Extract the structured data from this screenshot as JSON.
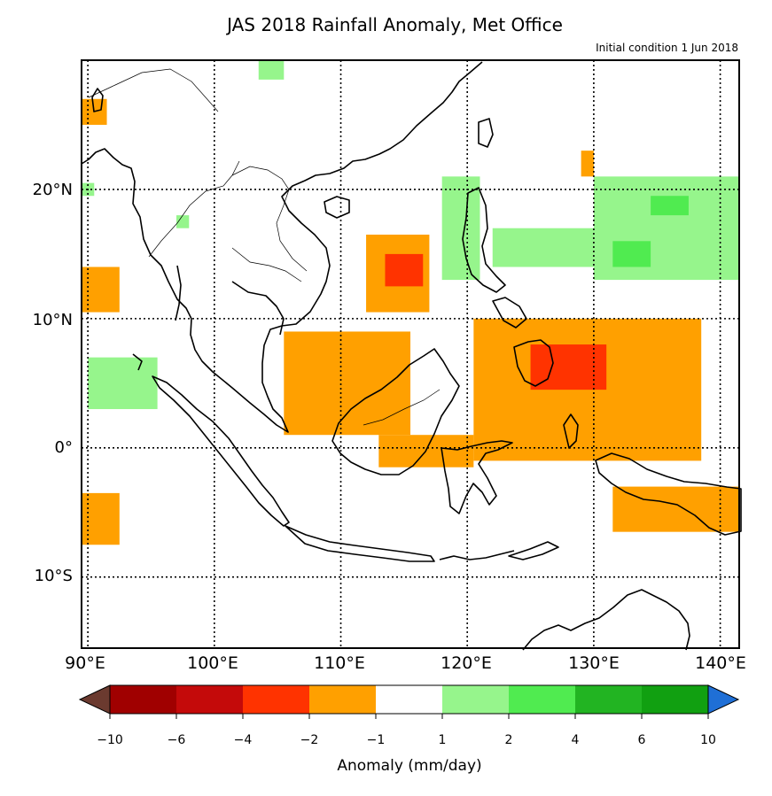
{
  "title": "JAS 2018 Rainfall Anomaly, Met Office",
  "subtitle": "Initial condition 1 Jun 2018",
  "map": {
    "lon_range": [
      89.5,
      141.5
    ],
    "lat_range": [
      -15.5,
      30
    ],
    "lat_labels": [
      "20°N",
      "10°N",
      "0°",
      "10°S"
    ],
    "lon_labels": [
      "90°E",
      "100°E",
      "110°E",
      "120°E",
      "130°E",
      "140°E"
    ],
    "gridlines": "dotted, every 10 degrees",
    "region": "Southeast Asia / Maritime Continent"
  },
  "chart_data": {
    "type": "heatmap",
    "title": "JAS 2018 Rainfall Anomaly, Met Office",
    "subtitle": "Initial condition 1 Jun 2018",
    "units": "mm/day",
    "colorbar": {
      "label": "Anomaly (mm/day)",
      "ticks": [
        "−10",
        "−6",
        "−4",
        "−2",
        "−1",
        "1",
        "2",
        "4",
        "6",
        "10"
      ],
      "bins": [
        {
          "range": "< -10",
          "color": "#6b3a2f"
        },
        {
          "range": "-10 to -6",
          "color": "#a00000"
        },
        {
          "range": "-6 to -4",
          "color": "#c40a0a"
        },
        {
          "range": "-4 to -2",
          "color": "#ff3300"
        },
        {
          "range": "-2 to -1",
          "color": "#ffa000"
        },
        {
          "range": "-1 to 1",
          "color": "#ffffff"
        },
        {
          "range": "1 to 2",
          "color": "#96f58c"
        },
        {
          "range": "2 to 4",
          "color": "#50eb50"
        },
        {
          "range": "4 to 6",
          "color": "#22b422"
        },
        {
          "range": "6 to 10",
          "color": "#11a011"
        },
        {
          "range": "> 10",
          "color": "#1f6fd6"
        }
      ]
    },
    "anomaly_regions": [
      {
        "category": "-2 to -1",
        "lon": [
          89.5,
          91.5
        ],
        "lat": [
          25,
          27
        ]
      },
      {
        "category": "-2 to -1",
        "lon": [
          89.5,
          92.5
        ],
        "lat": [
          10.5,
          14
        ]
      },
      {
        "category": "-2 to -1",
        "lon": [
          89.5,
          92.5
        ],
        "lat": [
          -7.5,
          -3.5
        ]
      },
      {
        "category": "-2 to -1",
        "lon": [
          112,
          117
        ],
        "lat": [
          10.5,
          16.5
        ]
      },
      {
        "category": "-4 to -2",
        "lon": [
          113.5,
          116.5
        ],
        "lat": [
          12.5,
          15
        ]
      },
      {
        "category": "-2 to -1",
        "lon": [
          105.5,
          115.5
        ],
        "lat": [
          1,
          9
        ]
      },
      {
        "category": "-2 to -1",
        "lon": [
          113,
          120.5
        ],
        "lat": [
          -1.5,
          1
        ]
      },
      {
        "category": "-2 to -1",
        "lon": [
          120.5,
          138.5
        ],
        "lat": [
          -1,
          10
        ]
      },
      {
        "category": "-4 to -2",
        "lon": [
          125,
          131
        ],
        "lat": [
          4.5,
          8
        ]
      },
      {
        "category": "-2 to -1",
        "lon": [
          131.5,
          141.5
        ],
        "lat": [
          -6.5,
          -3
        ]
      },
      {
        "category": "-2 to -1",
        "lon": [
          129,
          130
        ],
        "lat": [
          21,
          23
        ]
      },
      {
        "category": "1 to 2",
        "lon": [
          90,
          95.5
        ],
        "lat": [
          3,
          7
        ]
      },
      {
        "category": "1 to 2",
        "lon": [
          89.5,
          90.5
        ],
        "lat": [
          19.5,
          20.5
        ]
      },
      {
        "category": "1 to 2",
        "lon": [
          97,
          98
        ],
        "lat": [
          17,
          18
        ]
      },
      {
        "category": "1 to 2",
        "lon": [
          103.5,
          105.5
        ],
        "lat": [
          28.5,
          30
        ]
      },
      {
        "category": "1 to 2",
        "lon": [
          118,
          121
        ],
        "lat": [
          13,
          21
        ]
      },
      {
        "category": "1 to 2",
        "lon": [
          122,
          130.5
        ],
        "lat": [
          14,
          17
        ]
      },
      {
        "category": "1 to 2",
        "lon": [
          130,
          141.5
        ],
        "lat": [
          13,
          21
        ]
      },
      {
        "category": "2 to 4",
        "lon": [
          134.5,
          137.5
        ],
        "lat": [
          18,
          19.5
        ]
      },
      {
        "category": "2 to 4",
        "lon": [
          131.5,
          134.5
        ],
        "lat": [
          14,
          16
        ]
      }
    ]
  },
  "colorbar_label": "Anomaly (mm/day)"
}
